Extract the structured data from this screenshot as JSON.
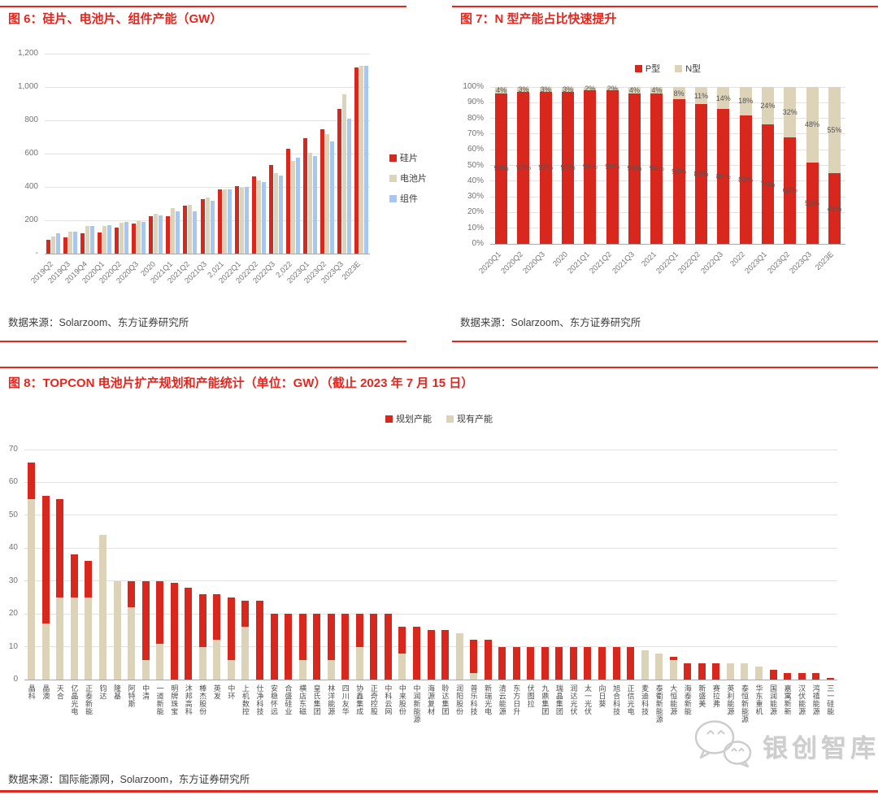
{
  "colors": {
    "accent_red": "#e5261f",
    "bar_red": "#d8271d",
    "bar_tan": "#ddd3b8",
    "bar_blue": "#a8c7ee"
  },
  "watermark": {
    "logo": "wechat-bubbles-logo",
    "text": "银创智库"
  },
  "chart_data": [
    {
      "type": "bar",
      "title": "图 6：硅片、电池片、组件产能（GW）",
      "source": "数据来源：Solarzoom、东方证券研究所",
      "unit": "GW",
      "legend_position": "right",
      "grid": true,
      "ylim": [
        0,
        1200
      ],
      "yticks": [
        "-",
        "200",
        "400",
        "600",
        "800",
        "1,000",
        "1,200"
      ],
      "categories": [
        "2019Q2",
        "2019Q3",
        "2019Q4",
        "2020Q1",
        "2020Q2",
        "2020Q3",
        "2020",
        "2021Q1",
        "2021Q2",
        "2021Q3",
        "2,021",
        "2022Q1",
        "2022Q2",
        "2022Q3",
        "2,022",
        "2023Q1",
        "2023Q2",
        "2023Q3",
        "2023E"
      ],
      "series": [
        {
          "name": "硅片",
          "key": "wafer",
          "color": "#d8271d",
          "values": [
            85,
            100,
            121,
            128,
            154,
            180,
            222,
            222,
            290,
            325,
            385,
            405,
            465,
            530,
            628,
            693,
            745,
            868,
            1115
          ]
        },
        {
          "name": "电池片",
          "key": "cell",
          "color": "#ddd3b8",
          "values": [
            103,
            134,
            164,
            167,
            184,
            197,
            238,
            275,
            292,
            338,
            385,
            396,
            440,
            483,
            557,
            605,
            718,
            955,
            1125
          ]
        },
        {
          "name": "组件",
          "key": "module",
          "color": "#a8c7ee",
          "values": [
            123,
            134,
            166,
            170,
            188,
            188,
            230,
            254,
            254,
            315,
            385,
            398,
            428,
            468,
            575,
            583,
            675,
            808,
            1125
          ]
        }
      ]
    },
    {
      "type": "stacked-bar-100",
      "title": "图 7：N 型产能占比快速提升",
      "source": "数据来源：Solarzoom、东方证券研究所",
      "legend_position": "top",
      "grid": true,
      "data_labels": true,
      "ylim": [
        0,
        100
      ],
      "yticks": [
        "0%",
        "10%",
        "20%",
        "30%",
        "40%",
        "50%",
        "60%",
        "70%",
        "80%",
        "90%",
        "100%"
      ],
      "categories": [
        "2020Q1",
        "2020Q2",
        "2020Q3",
        "2020",
        "2021Q1",
        "2021Q2",
        "2021Q3",
        "2021",
        "2022Q1",
        "2022Q2",
        "2022Q3",
        "2022",
        "2023Q1",
        "2023Q2",
        "2023Q3",
        "2023E"
      ],
      "series": [
        {
          "name": "P型",
          "key": "p-type",
          "color": "#d8271d",
          "values": [
            96,
            97,
            97,
            97,
            98,
            98,
            96,
            96,
            92,
            89,
            86,
            82,
            76,
            68,
            52,
            45
          ]
        },
        {
          "name": "N型",
          "key": "n-type",
          "color": "#ddd3b8",
          "values": [
            4,
            3,
            3,
            3,
            2,
            2,
            4,
            4,
            8,
            11,
            14,
            18,
            24,
            32,
            48,
            55
          ]
        }
      ]
    },
    {
      "type": "stacked-bar",
      "title": "图 8：TOPCON 电池片扩产规划和产能统计（单位：GW）（截止 2023 年 7 月 15 日）",
      "source": "数据来源：国际能源网，Solarzoom，东方证券研究所",
      "unit": "GW",
      "legend_position": "top",
      "grid": true,
      "ylim": [
        0,
        70
      ],
      "yticks": [
        "0",
        "10",
        "20",
        "30",
        "40",
        "50",
        "60",
        "70"
      ],
      "categories": [
        "晶科",
        "晶澳",
        "天合",
        "亿晶光电",
        "正泰新能",
        "钧达",
        "隆基",
        "阿特斯",
        "中清",
        "一道新能",
        "明牌珠宝",
        "沐邦高科",
        "棒杰股份",
        "英发",
        "中环",
        "上机数控",
        "仕净科技",
        "安稳怀远",
        "合盛硅业",
        "横店东磁",
        "皇氏集团",
        "林洋能源",
        "四川友华",
        "协鑫集成",
        "正奇控股",
        "中科云网",
        "中来股份",
        "中润新能源",
        "海源复材",
        "聆达集团",
        "润阳股份",
        "普乐科技",
        "新瑞光电",
        "清云能源",
        "东方日升",
        "伏图拉",
        "九鼎集团",
        "瑞晶集团",
        "润达光伏",
        "太一光伏",
        "向日葵",
        "旭合科技",
        "正信光电",
        "麦迪科技",
        "泰衢新能源",
        "大恒能源",
        "海泰新能",
        "新盛美",
        "赛拉弗",
        "英利能源",
        "泰恒新能源",
        "华东重机",
        "国润能源",
        "嘉寓新新",
        "汉伏能源",
        "鸿禧能源",
        "三一硅能"
      ],
      "series": [
        {
          "name": "规划产能",
          "key": "planned-capacity",
          "color": "#d8271d",
          "values": [
            11,
            39,
            30,
            13,
            11,
            0,
            0,
            8,
            24,
            19,
            29.5,
            28,
            16,
            14,
            19,
            8,
            24,
            20,
            20,
            14,
            20,
            14,
            20,
            10,
            20,
            20,
            8,
            16,
            15,
            15,
            0,
            10,
            12,
            10,
            10,
            10,
            10,
            10,
            10,
            10,
            10,
            10,
            10,
            0,
            0,
            1,
            5,
            5,
            5,
            0,
            0,
            0,
            3,
            2,
            2,
            2,
            0.5
          ]
        },
        {
          "name": "现有产能",
          "key": "existing-capacity",
          "color": "#ddd3b8",
          "values": [
            55,
            17,
            25,
            25,
            25,
            44,
            30,
            22,
            6,
            11,
            0,
            0,
            10,
            12,
            6,
            16,
            0,
            0,
            0,
            6,
            0,
            6,
            0,
            10,
            0,
            0,
            8,
            0,
            0,
            0,
            14,
            2,
            0,
            0,
            0,
            0,
            0,
            0,
            0,
            0,
            0,
            0,
            0,
            9,
            8,
            6,
            0,
            0,
            0,
            5,
            5,
            4,
            0,
            0,
            0,
            0,
            0
          ]
        }
      ]
    }
  ]
}
